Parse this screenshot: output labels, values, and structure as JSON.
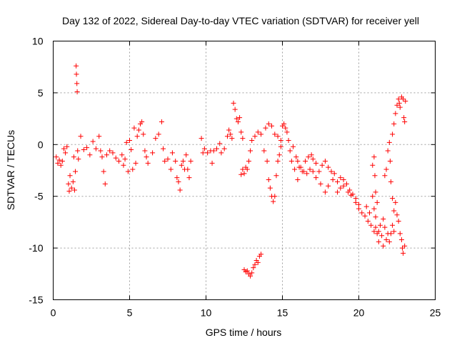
{
  "chart_data": {
    "type": "scatter",
    "title": "Day 132 of 2022, Sidereal Day-to-day VTEC variation (SDTVAR) for receiver yell",
    "xlabel": "GPS time / hours",
    "ylabel": "SDTVAR / TECUs",
    "xlim": [
      0,
      25
    ],
    "ylim": [
      -15,
      10
    ],
    "x_ticks": [
      0,
      5,
      10,
      15,
      20,
      25
    ],
    "x_tick_labels": [
      "0",
      "5",
      "10",
      "15",
      "20",
      "25"
    ],
    "y_ticks": [
      -15,
      -10,
      -5,
      0,
      5,
      10
    ],
    "y_tick_labels": [
      "-15",
      "-10",
      "-5",
      "0",
      "5",
      "10"
    ],
    "grid": true,
    "marker": "+",
    "color": "#ff0000",
    "series": [
      {
        "name": "SDTVAR",
        "points": [
          [
            0.2,
            -1.2
          ],
          [
            0.3,
            -1.8
          ],
          [
            0.4,
            -1.5
          ],
          [
            0.5,
            -2.0
          ],
          [
            0.6,
            -1.6
          ],
          [
            0.7,
            -0.4
          ],
          [
            0.8,
            -0.8
          ],
          [
            0.9,
            -0.2
          ],
          [
            1.0,
            -3.8
          ],
          [
            1.05,
            -4.5
          ],
          [
            1.1,
            -3.0
          ],
          [
            1.2,
            -4.2
          ],
          [
            1.3,
            -3.6
          ],
          [
            1.35,
            -1.2
          ],
          [
            1.4,
            -4.4
          ],
          [
            1.45,
            -2.6
          ],
          [
            1.5,
            7.6
          ],
          [
            1.52,
            6.8
          ],
          [
            1.55,
            5.9
          ],
          [
            1.57,
            5.1
          ],
          [
            1.6,
            -0.6
          ],
          [
            1.65,
            -1.4
          ],
          [
            1.8,
            0.8
          ],
          [
            2.0,
            -0.5
          ],
          [
            2.2,
            -0.3
          ],
          [
            2.4,
            -1.0
          ],
          [
            2.6,
            0.3
          ],
          [
            2.8,
            -0.4
          ],
          [
            3.0,
            0.8
          ],
          [
            3.1,
            -0.6
          ],
          [
            3.2,
            -1.2
          ],
          [
            3.3,
            -2.6
          ],
          [
            3.4,
            -3.8
          ],
          [
            3.5,
            -1.0
          ],
          [
            3.7,
            -0.6
          ],
          [
            3.9,
            -0.8
          ],
          [
            4.1,
            -1.3
          ],
          [
            4.3,
            -1.6
          ],
          [
            4.5,
            -1.0
          ],
          [
            4.6,
            -2.0
          ],
          [
            4.7,
            -1.4
          ],
          [
            4.8,
            0.2
          ],
          [
            4.9,
            -2.6
          ],
          [
            5.0,
            0.4
          ],
          [
            5.1,
            -0.5
          ],
          [
            5.2,
            -2.4
          ],
          [
            5.3,
            1.6
          ],
          [
            5.4,
            -1.8
          ],
          [
            5.5,
            0.8
          ],
          [
            5.6,
            1.4
          ],
          [
            5.7,
            2.0
          ],
          [
            5.8,
            2.2
          ],
          [
            5.9,
            1.0
          ],
          [
            6.0,
            -0.6
          ],
          [
            6.1,
            -1.2
          ],
          [
            6.2,
            -1.8
          ],
          [
            6.5,
            -0.8
          ],
          [
            6.7,
            0.6
          ],
          [
            6.9,
            1.0
          ],
          [
            7.1,
            2.2
          ],
          [
            7.2,
            -0.4
          ],
          [
            7.3,
            -1.6
          ],
          [
            7.5,
            -1.4
          ],
          [
            7.7,
            -2.4
          ],
          [
            7.8,
            -0.8
          ],
          [
            8.0,
            -1.6
          ],
          [
            8.1,
            -3.2
          ],
          [
            8.2,
            -3.6
          ],
          [
            8.3,
            -4.4
          ],
          [
            8.4,
            -2.0
          ],
          [
            8.5,
            -1.6
          ],
          [
            8.6,
            -2.4
          ],
          [
            8.7,
            -1.0
          ],
          [
            8.8,
            -2.4
          ],
          [
            8.9,
            -3.2
          ],
          [
            9.0,
            -1.6
          ],
          [
            9.7,
            0.6
          ],
          [
            9.8,
            -0.8
          ],
          [
            9.9,
            -0.4
          ],
          [
            10.1,
            -0.8
          ],
          [
            10.3,
            -0.6
          ],
          [
            10.4,
            -1.8
          ],
          [
            10.5,
            -0.6
          ],
          [
            10.7,
            -0.4
          ],
          [
            10.9,
            0.1
          ],
          [
            11.0,
            -0.8
          ],
          [
            11.2,
            -0.4
          ],
          [
            11.4,
            0.8
          ],
          [
            11.5,
            1.4
          ],
          [
            11.6,
            1.0
          ],
          [
            11.7,
            0.6
          ],
          [
            11.8,
            4.0
          ],
          [
            11.9,
            3.4
          ],
          [
            12.0,
            2.5
          ],
          [
            12.1,
            2.2
          ],
          [
            12.2,
            2.6
          ],
          [
            12.3,
            1.2
          ],
          [
            12.4,
            0.6
          ],
          [
            12.3,
            -2.9
          ],
          [
            12.4,
            -2.4
          ],
          [
            12.5,
            -2.8
          ],
          [
            12.6,
            -2.2
          ],
          [
            12.7,
            -2.4
          ],
          [
            12.8,
            -1.6
          ],
          [
            12.9,
            -0.6
          ],
          [
            12.5,
            -12.1
          ],
          [
            12.6,
            -12.3
          ],
          [
            12.7,
            -12.2
          ],
          [
            12.8,
            -12.5
          ],
          [
            12.9,
            -12.7
          ],
          [
            13.0,
            -12.4
          ],
          [
            13.1,
            -11.9
          ],
          [
            13.2,
            -11.6
          ],
          [
            13.3,
            -11.2
          ],
          [
            13.4,
            -11.4
          ],
          [
            13.5,
            -10.8
          ],
          [
            13.6,
            -10.6
          ],
          [
            13.0,
            0.4
          ],
          [
            13.2,
            0.8
          ],
          [
            13.4,
            1.2
          ],
          [
            13.6,
            1.0
          ],
          [
            13.8,
            -0.6
          ],
          [
            14.0,
            -1.6
          ],
          [
            14.1,
            -3.4
          ],
          [
            14.2,
            -4.2
          ],
          [
            14.3,
            -5.0
          ],
          [
            14.4,
            -5.5
          ],
          [
            14.5,
            -5.0
          ],
          [
            14.6,
            -3.0
          ],
          [
            14.7,
            -1.6
          ],
          [
            14.8,
            -1.0
          ],
          [
            14.9,
            -0.2
          ],
          [
            13.9,
            1.6
          ],
          [
            14.1,
            2.0
          ],
          [
            14.3,
            1.8
          ],
          [
            14.5,
            1.0
          ],
          [
            14.7,
            0.8
          ],
          [
            14.9,
            0.4
          ],
          [
            15.0,
            1.8
          ],
          [
            15.1,
            2.0
          ],
          [
            15.2,
            1.6
          ],
          [
            15.3,
            1.2
          ],
          [
            15.4,
            0.4
          ],
          [
            15.5,
            -0.6
          ],
          [
            15.7,
            -0.2
          ],
          [
            15.9,
            -1.2
          ],
          [
            16.0,
            -1.6
          ],
          [
            16.1,
            -2.2
          ],
          [
            16.3,
            -2.6
          ],
          [
            15.6,
            -1.6
          ],
          [
            15.8,
            -2.4
          ],
          [
            16.0,
            -3.4
          ],
          [
            16.2,
            -2.2
          ],
          [
            16.4,
            -2.6
          ],
          [
            16.5,
            -1.6
          ],
          [
            16.7,
            -1.2
          ],
          [
            16.9,
            -1.0
          ],
          [
            17.0,
            -1.4
          ],
          [
            17.2,
            -1.8
          ],
          [
            17.4,
            -2.6
          ],
          [
            17.6,
            -2.0
          ],
          [
            17.8,
            -1.6
          ],
          [
            18.0,
            -2.2
          ],
          [
            18.2,
            -2.6
          ],
          [
            18.4,
            -2.8
          ],
          [
            16.6,
            -2.8
          ],
          [
            16.8,
            -2.4
          ],
          [
            17.0,
            -2.6
          ],
          [
            17.2,
            -3.2
          ],
          [
            17.5,
            -3.8
          ],
          [
            17.8,
            -4.6
          ],
          [
            18.0,
            -4.0
          ],
          [
            18.3,
            -3.4
          ],
          [
            18.6,
            -3.6
          ],
          [
            18.8,
            -3.2
          ],
          [
            19.0,
            -3.4
          ],
          [
            19.2,
            -3.8
          ],
          [
            19.4,
            -4.4
          ],
          [
            19.6,
            -4.8
          ],
          [
            19.8,
            -5.2
          ],
          [
            20.0,
            -5.8
          ],
          [
            18.6,
            -4.6
          ],
          [
            18.8,
            -4.2
          ],
          [
            19.0,
            -4.0
          ],
          [
            19.3,
            -4.6
          ],
          [
            19.5,
            -4.9
          ],
          [
            19.8,
            -5.6
          ],
          [
            20.0,
            -6.2
          ],
          [
            20.2,
            -6.6
          ],
          [
            20.4,
            -6.9
          ],
          [
            20.6,
            -7.4
          ],
          [
            20.8,
            -7.8
          ],
          [
            21.0,
            -8.4
          ],
          [
            21.1,
            -8.0
          ],
          [
            21.2,
            -8.6
          ],
          [
            21.3,
            -9.4
          ],
          [
            21.4,
            -7.8
          ],
          [
            20.5,
            -6.0
          ],
          [
            20.7,
            -6.6
          ],
          [
            20.9,
            -5.0
          ],
          [
            21.0,
            -6.2
          ],
          [
            21.1,
            -7.0
          ],
          [
            21.3,
            -8.4
          ],
          [
            21.5,
            -8.8
          ],
          [
            21.6,
            -9.8
          ],
          [
            20.9,
            -2.0
          ],
          [
            21.0,
            -1.2
          ],
          [
            21.05,
            -3.0
          ],
          [
            21.1,
            -4.6
          ],
          [
            21.2,
            -5.6
          ],
          [
            21.6,
            -7.2
          ],
          [
            21.7,
            -8.0
          ],
          [
            21.8,
            -9.2
          ],
          [
            21.9,
            -8.6
          ],
          [
            22.0,
            -9.4
          ],
          [
            22.1,
            -8.6
          ],
          [
            22.2,
            -7.8
          ],
          [
            22.3,
            -8.4
          ],
          [
            21.7,
            -3.0
          ],
          [
            21.8,
            -2.4
          ],
          [
            21.9,
            -0.6
          ],
          [
            22.0,
            0.2
          ],
          [
            22.05,
            -1.6
          ],
          [
            22.1,
            -3.6
          ],
          [
            22.2,
            -5.2
          ],
          [
            22.3,
            -6.4
          ],
          [
            22.2,
            1.0
          ],
          [
            22.3,
            2.0
          ],
          [
            22.4,
            3.0
          ],
          [
            22.5,
            3.8
          ],
          [
            22.6,
            4.4
          ],
          [
            22.65,
            4.0
          ],
          [
            22.7,
            3.6
          ],
          [
            22.8,
            4.6
          ],
          [
            22.9,
            4.4
          ],
          [
            22.95,
            2.6
          ],
          [
            23.0,
            2.2
          ],
          [
            23.05,
            4.2
          ],
          [
            22.4,
            -5.6
          ],
          [
            22.5,
            -6.8
          ],
          [
            22.6,
            -7.4
          ],
          [
            22.7,
            -8.6
          ],
          [
            22.8,
            -9.2
          ],
          [
            22.85,
            -10.0
          ],
          [
            22.9,
            -10.5
          ],
          [
            23.0,
            -9.8
          ]
        ]
      }
    ]
  }
}
